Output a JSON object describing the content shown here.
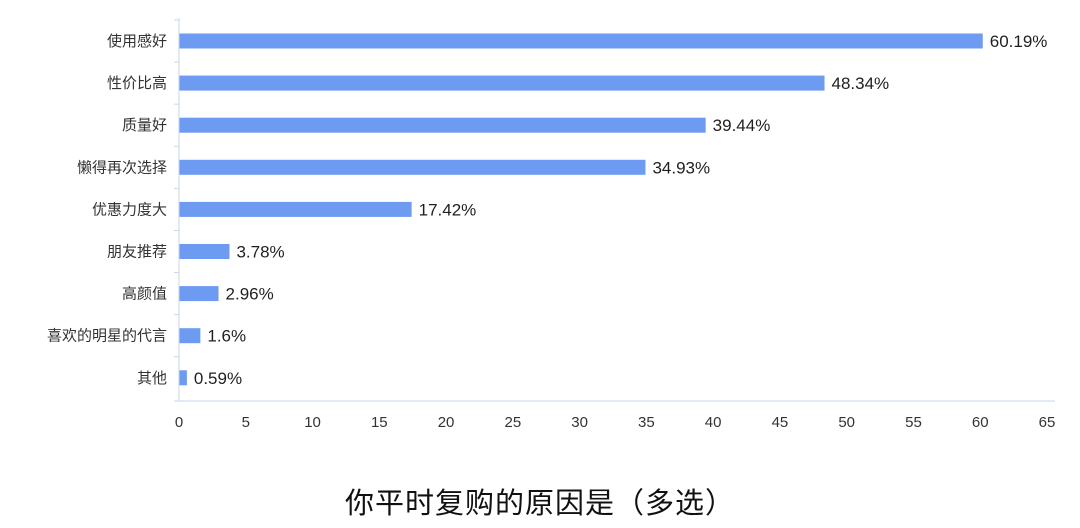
{
  "caption": "你平时复购的原因是（多选）",
  "chart_data": {
    "type": "bar",
    "orientation": "horizontal",
    "title": "",
    "xlabel": "",
    "ylabel": "",
    "categories": [
      "使用感好",
      "性价比高",
      "质量好",
      "懒得再次选择",
      "优惠力度大",
      "朋友推荐",
      "高颜值",
      "喜欢的明星的代言",
      "其他"
    ],
    "values": [
      60.19,
      48.34,
      39.44,
      34.93,
      17.42,
      3.78,
      2.96,
      1.6,
      0.59
    ],
    "value_labels": [
      "60.19%",
      "48.34%",
      "39.44%",
      "34.93%",
      "17.42%",
      "3.78%",
      "2.96%",
      "1.6%",
      "0.59%"
    ],
    "xlim": [
      0,
      65
    ],
    "xticks": [
      0,
      5,
      10,
      15,
      20,
      25,
      30,
      35,
      40,
      45,
      50,
      55,
      60,
      65
    ],
    "grid": false,
    "legend": "none",
    "bar_color": "#6d9bf1",
    "axis_color": "#c9d6ea"
  }
}
